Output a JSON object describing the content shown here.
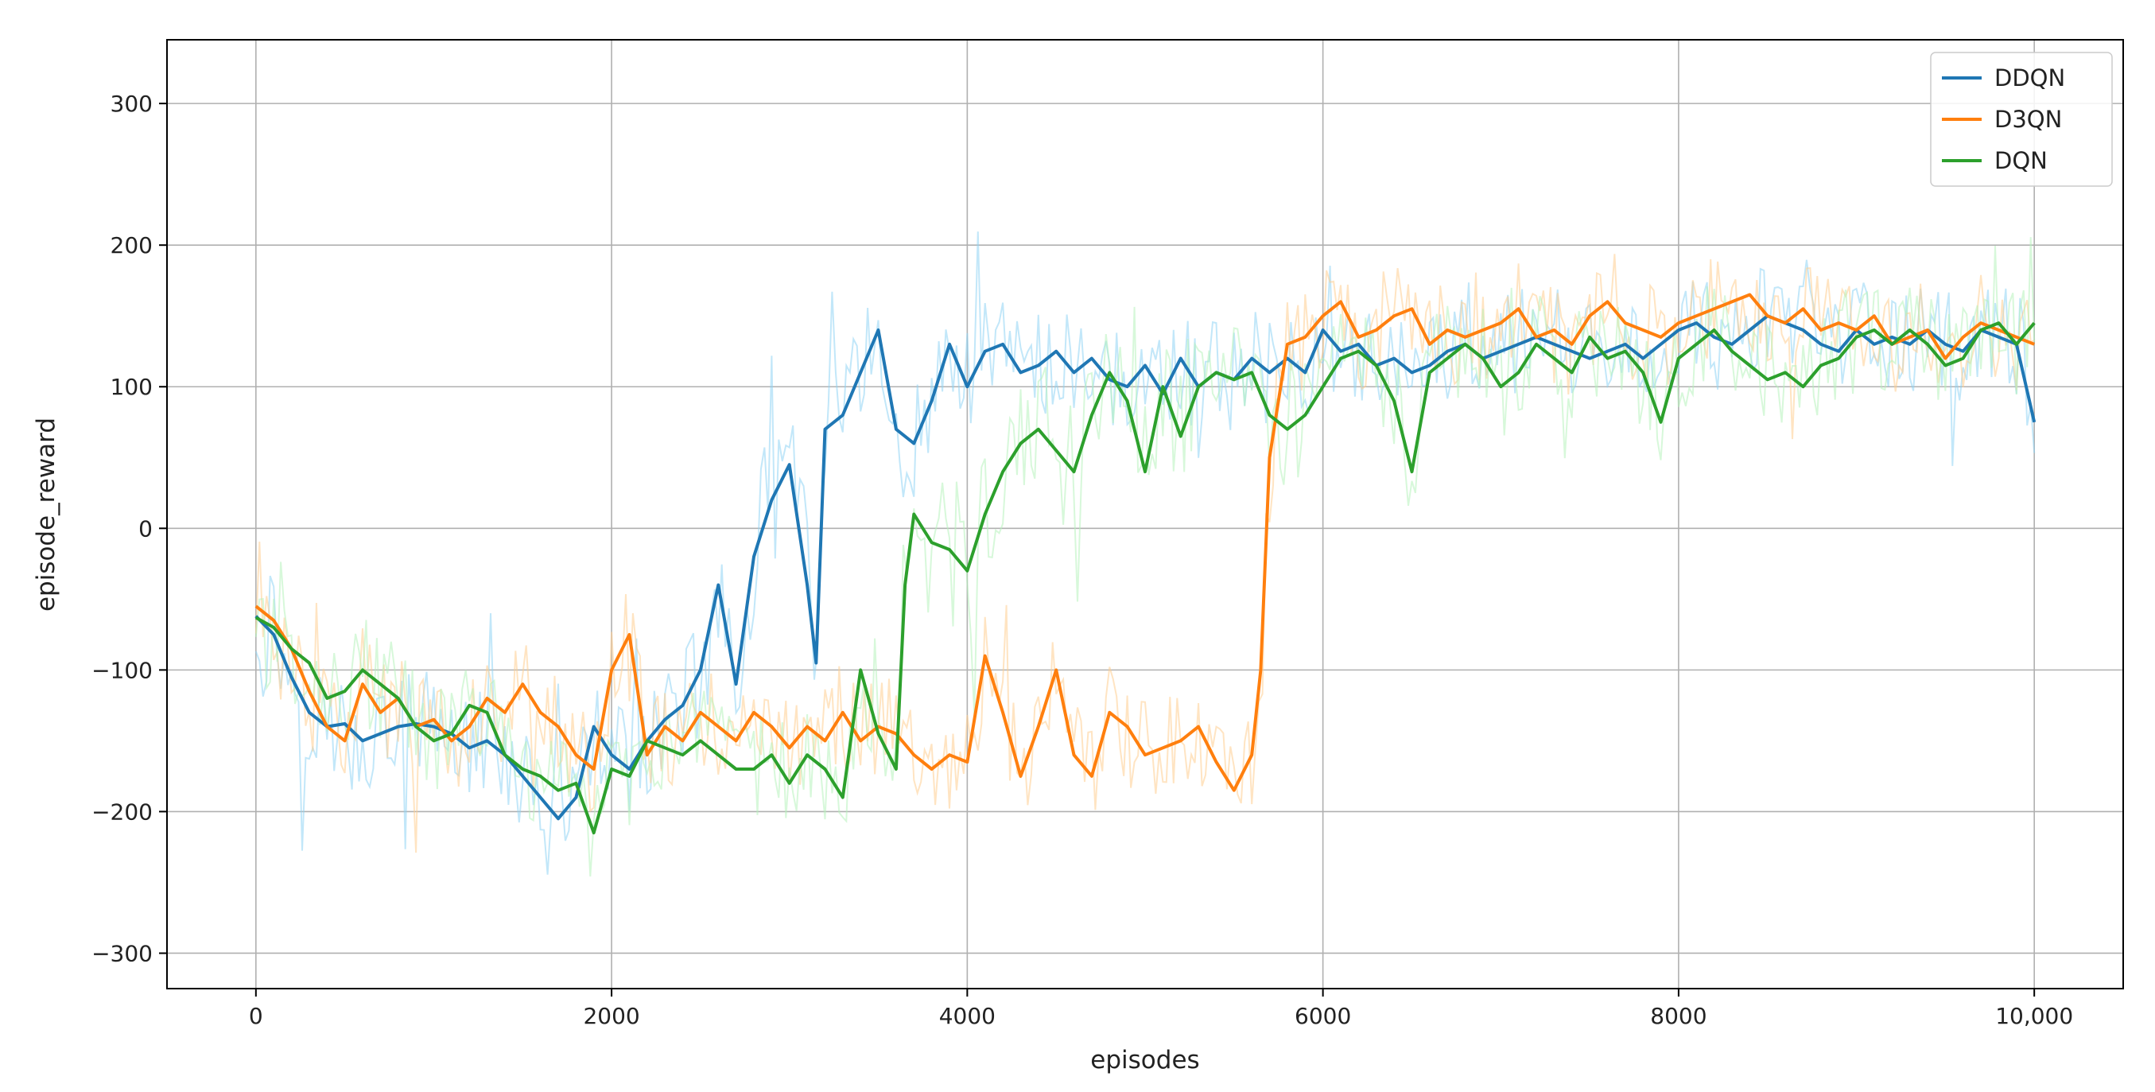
{
  "chart_data": {
    "type": "line",
    "title": "",
    "xlabel": "episodes",
    "ylabel": "episode_reward",
    "xlim": [
      -500,
      10500
    ],
    "ylim": [
      -325,
      345
    ],
    "x_ticks": [
      0,
      2000,
      4000,
      6000,
      8000,
      10000
    ],
    "x_tick_labels": [
      "0",
      "2000",
      "4000",
      "6000",
      "8000",
      "10,000"
    ],
    "y_ticks": [
      -300,
      -200,
      -100,
      0,
      100,
      200,
      300
    ],
    "y_tick_labels": [
      "−300",
      "−200",
      "−100",
      "0",
      "100",
      "200",
      "300"
    ],
    "grid": true,
    "legend_position": "top-right",
    "series": [
      {
        "name": "DDQN",
        "color": "#1f77b4",
        "raw_color": "#8fd3f4",
        "x": [
          0,
          100,
          200,
          300,
          400,
          500,
          600,
          700,
          800,
          900,
          1000,
          1100,
          1200,
          1300,
          1400,
          1500,
          1600,
          1700,
          1800,
          1900,
          2000,
          2100,
          2200,
          2300,
          2400,
          2500,
          2600,
          2700,
          2800,
          2900,
          3000,
          3100,
          3150,
          3200,
          3300,
          3400,
          3500,
          3600,
          3700,
          3800,
          3900,
          4000,
          4100,
          4200,
          4300,
          4400,
          4500,
          4600,
          4700,
          4800,
          4900,
          5000,
          5100,
          5200,
          5300,
          5400,
          5500,
          5600,
          5700,
          5800,
          5900,
          6000,
          6100,
          6200,
          6300,
          6400,
          6500,
          6600,
          6700,
          6800,
          6900,
          7000,
          7100,
          7200,
          7300,
          7400,
          7500,
          7600,
          7700,
          7800,
          7900,
          8000,
          8100,
          8200,
          8300,
          8400,
          8500,
          8600,
          8700,
          8800,
          8900,
          9000,
          9100,
          9200,
          9300,
          9400,
          9500,
          9600,
          9700,
          9800,
          9900,
          10000
        ],
        "values": [
          -62,
          -75,
          -105,
          -130,
          -140,
          -138,
          -150,
          -145,
          -140,
          -138,
          -140,
          -145,
          -155,
          -150,
          -160,
          -175,
          -190,
          -205,
          -190,
          -140,
          -160,
          -170,
          -150,
          -135,
          -125,
          -100,
          -40,
          -110,
          -20,
          20,
          45,
          -40,
          -95,
          70,
          80,
          110,
          140,
          70,
          60,
          90,
          130,
          100,
          125,
          130,
          110,
          115,
          125,
          110,
          120,
          105,
          100,
          115,
          95,
          120,
          100,
          110,
          105,
          120,
          110,
          120,
          110,
          140,
          125,
          130,
          115,
          120,
          110,
          115,
          125,
          130,
          120,
          125,
          130,
          135,
          130,
          125,
          120,
          125,
          130,
          120,
          130,
          140,
          145,
          135,
          130,
          140,
          150,
          145,
          140,
          130,
          125,
          140,
          130,
          135,
          130,
          140,
          130,
          125,
          140,
          135,
          130,
          75
        ]
      },
      {
        "name": "D3QN",
        "color": "#ff7f0e",
        "raw_color": "#ffcd8f",
        "x": [
          0,
          100,
          200,
          300,
          400,
          500,
          600,
          700,
          800,
          900,
          1000,
          1100,
          1200,
          1300,
          1400,
          1500,
          1600,
          1700,
          1800,
          1900,
          2000,
          2100,
          2200,
          2300,
          2400,
          2500,
          2600,
          2700,
          2800,
          2900,
          3000,
          3100,
          3200,
          3300,
          3400,
          3500,
          3600,
          3700,
          3800,
          3900,
          4000,
          4100,
          4200,
          4300,
          4400,
          4500,
          4600,
          4700,
          4800,
          4900,
          5000,
          5100,
          5200,
          5300,
          5400,
          5500,
          5600,
          5650,
          5700,
          5800,
          5900,
          6000,
          6100,
          6200,
          6300,
          6400,
          6500,
          6600,
          6700,
          6800,
          6900,
          7000,
          7100,
          7200,
          7300,
          7400,
          7500,
          7600,
          7700,
          7800,
          7900,
          8000,
          8100,
          8200,
          8300,
          8400,
          8500,
          8600,
          8700,
          8800,
          8900,
          9000,
          9100,
          9200,
          9300,
          9400,
          9500,
          9600,
          9700,
          9800,
          9900,
          10000
        ],
        "values": [
          -55,
          -65,
          -85,
          -115,
          -140,
          -150,
          -110,
          -130,
          -120,
          -140,
          -135,
          -150,
          -140,
          -120,
          -130,
          -110,
          -130,
          -140,
          -160,
          -170,
          -100,
          -75,
          -160,
          -140,
          -150,
          -130,
          -140,
          -150,
          -130,
          -140,
          -155,
          -140,
          -150,
          -130,
          -150,
          -140,
          -145,
          -160,
          -170,
          -160,
          -165,
          -90,
          -130,
          -175,
          -140,
          -100,
          -160,
          -175,
          -130,
          -140,
          -160,
          -155,
          -150,
          -140,
          -165,
          -185,
          -160,
          -100,
          50,
          130,
          135,
          150,
          160,
          135,
          140,
          150,
          155,
          130,
          140,
          135,
          140,
          145,
          155,
          135,
          140,
          130,
          150,
          160,
          145,
          140,
          135,
          145,
          150,
          155,
          160,
          165,
          150,
          145,
          155,
          140,
          145,
          140,
          150,
          130,
          135,
          140,
          120,
          135,
          145,
          140,
          135,
          130
        ]
      },
      {
        "name": "DQN",
        "color": "#2ca02c",
        "raw_color": "#b6f2bc",
        "x": [
          0,
          100,
          200,
          300,
          400,
          500,
          600,
          700,
          800,
          900,
          1000,
          1100,
          1200,
          1300,
          1400,
          1500,
          1600,
          1700,
          1800,
          1900,
          2000,
          2100,
          2200,
          2300,
          2400,
          2500,
          2600,
          2700,
          2800,
          2900,
          3000,
          3100,
          3200,
          3300,
          3400,
          3500,
          3600,
          3650,
          3700,
          3800,
          3900,
          4000,
          4100,
          4200,
          4300,
          4400,
          4500,
          4600,
          4700,
          4800,
          4900,
          5000,
          5100,
          5200,
          5300,
          5400,
          5500,
          5600,
          5700,
          5800,
          5900,
          6000,
          6100,
          6200,
          6300,
          6400,
          6500,
          6600,
          6700,
          6800,
          6900,
          7000,
          7100,
          7200,
          7300,
          7400,
          7500,
          7600,
          7700,
          7800,
          7900,
          8000,
          8100,
          8200,
          8300,
          8400,
          8500,
          8600,
          8700,
          8800,
          8900,
          9000,
          9100,
          9200,
          9300,
          9400,
          9500,
          9600,
          9700,
          9800,
          9900,
          10000
        ],
        "values": [
          -63,
          -70,
          -85,
          -95,
          -120,
          -115,
          -100,
          -110,
          -120,
          -140,
          -150,
          -145,
          -125,
          -130,
          -160,
          -170,
          -175,
          -185,
          -180,
          -215,
          -170,
          -175,
          -150,
          -155,
          -160,
          -150,
          -160,
          -170,
          -170,
          -160,
          -180,
          -160,
          -170,
          -190,
          -100,
          -145,
          -170,
          -40,
          10,
          -10,
          -15,
          -30,
          10,
          40,
          60,
          70,
          55,
          40,
          80,
          110,
          90,
          40,
          100,
          65,
          100,
          110,
          105,
          110,
          80,
          70,
          80,
          100,
          120,
          125,
          115,
          90,
          40,
          110,
          120,
          130,
          120,
          100,
          110,
          130,
          120,
          110,
          135,
          120,
          125,
          110,
          75,
          120,
          130,
          140,
          125,
          115,
          105,
          110,
          100,
          115,
          120,
          135,
          140,
          130,
          140,
          130,
          115,
          120,
          140,
          145,
          130,
          145
        ]
      }
    ]
  }
}
